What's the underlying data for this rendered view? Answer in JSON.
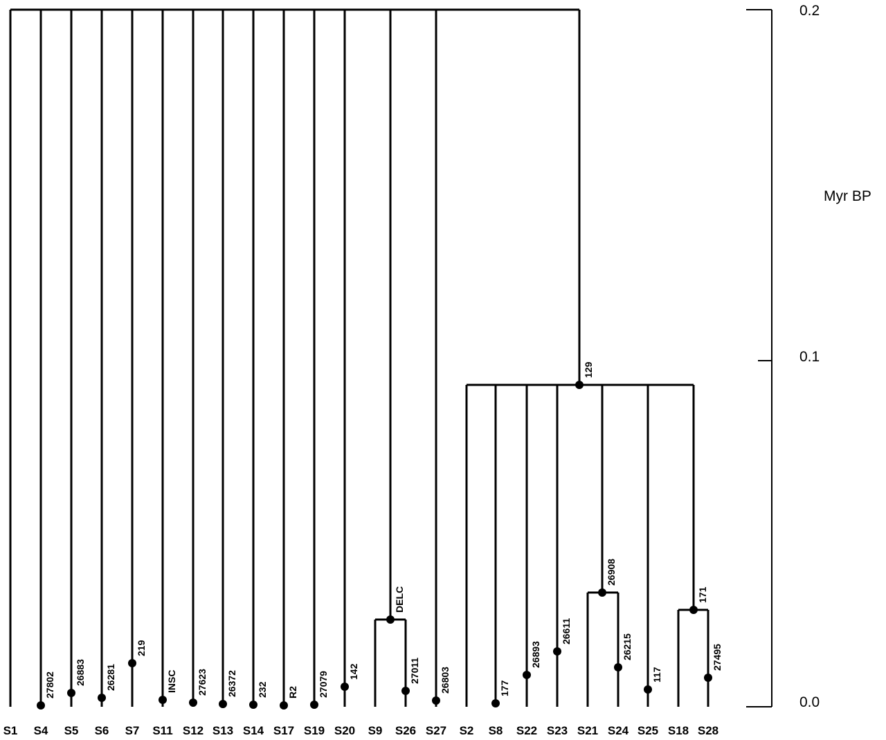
{
  "axis": {
    "label": "Myr BP",
    "ticks": [
      "0.2",
      "0.1",
      "0.0"
    ]
  },
  "leaves": [
    "S1",
    "S4",
    "S5",
    "S6",
    "S7",
    "S11",
    "S12",
    "S13",
    "S14",
    "S17",
    "S19",
    "S20",
    "S9",
    "S26",
    "S27",
    "S2",
    "S8",
    "S22",
    "S23",
    "S21",
    "S24",
    "S25",
    "S18",
    "S28"
  ],
  "node_labels": [
    "27802",
    "26883",
    "26281",
    "219",
    "INSC",
    "27623",
    "26372",
    "232",
    "R2",
    "27079",
    "142",
    "DELC",
    "27011",
    "26803",
    "177",
    "26893",
    "26611",
    "129",
    "26908",
    "26215",
    "117",
    "171",
    "27495"
  ]
}
